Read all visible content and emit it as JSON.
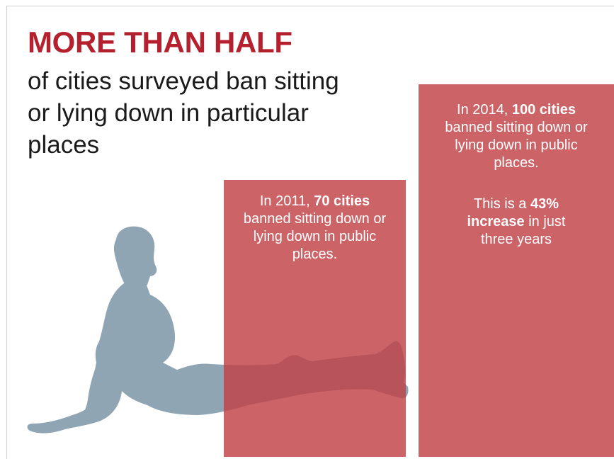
{
  "headline": "MORE THAN HALF",
  "subhead": "of cities surveyed ban sitting or lying down in particular places",
  "colors": {
    "headline": "#b5202e",
    "bar": "#c1414580",
    "silhouette": "#8fa5b4"
  },
  "bars": [
    {
      "year_lead": "In 2011, ",
      "value_text": "70 cities",
      "desc": "banned sitting down or lying down in public places."
    },
    {
      "year_lead": "In 2014, ",
      "value_text": "100 cities",
      "desc": "banned sitting down or lying down in public places.",
      "note_lead": "This is a ",
      "note_bold": "43% increase",
      "note_tail": " in just three years"
    }
  ],
  "icon": "sitting-person-silhouette",
  "chart_data": {
    "type": "bar",
    "categories": [
      "2011",
      "2014"
    ],
    "values": [
      70,
      100
    ],
    "title": "MORE THAN HALF",
    "subtitle": "of cities surveyed ban sitting or lying down in particular places",
    "xlabel": "",
    "ylabel": "",
    "ylim": [
      0,
      100
    ],
    "grid": false,
    "annotations": [
      "43% increase in just three years"
    ]
  }
}
